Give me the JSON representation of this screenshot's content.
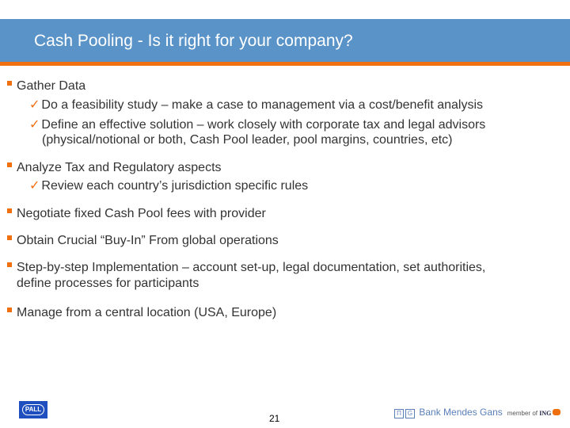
{
  "title": "Cash Pooling - Is it right for your company?",
  "bullets": [
    {
      "text": "Gather Data",
      "subs": [
        "Do a feasibility study – make a case to management via a cost/benefit analysis",
        "Define an effective solution – work closely with corporate tax and legal advisors",
        "(physical/notional or both, Cash Pool leader, pool margins, countries, etc)"
      ]
    },
    {
      "text": "Analyze Tax and Regulatory aspects",
      "subs": [
        "Review each country’s jurisdiction specific rules"
      ]
    },
    {
      "text": "Negotiate fixed Cash Pool fees with provider"
    },
    {
      "text": "Obtain Crucial “Buy-In” From global operations"
    },
    {
      "text": "Step-by-step Implementation – account set-up, legal documentation, set authorities,",
      "cont": "define processes for participants"
    },
    {
      "text": "Manage from a central location (USA, Europe)"
    }
  ],
  "footer": {
    "page": "21",
    "pall_logo": "PALL",
    "bank_logo": "Bank Mendes Gans",
    "bank_mark": "G",
    "member_of": "member of",
    "ing": "ING"
  },
  "colors": {
    "header": "#5a93c8",
    "accent": "#f07010"
  }
}
